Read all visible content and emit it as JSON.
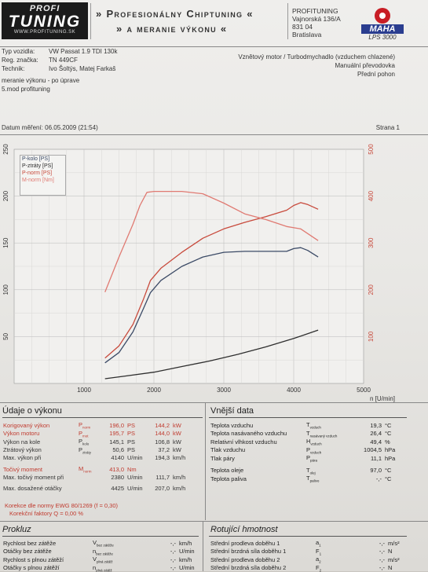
{
  "header": {
    "logo_top": "PROFI",
    "logo_main": "TUNING",
    "logo_url": "WWW.PROFITUNING.SK",
    "title_line1": "» Profesionálny Chiptuning «",
    "title_line2": "» a meranie výkonu «",
    "address": [
      "PROFITUNING",
      "Vajnorská 136/A",
      "831 04",
      "Bratislava"
    ],
    "maha_word": "MAHA",
    "maha_model": "LPS 3000"
  },
  "vehicle": {
    "type_label": "Typ vozidla:",
    "type_value": "VW Passat 1.9 TDI 130k",
    "reg_label": "Reg. značka:",
    "reg_value": "TN 449CF",
    "tech_label": "Technik:",
    "tech_value": "Ivo Šoltýs, Matej Farkaš",
    "engine": "Vznětový motor / Turbodmychadlo (vzduchem chlazené)",
    "gearbox": "Manuální převodovka",
    "drive": "Přední pohon",
    "note1": "meranie výkonu - po úprave",
    "note2": "5.mod profituning"
  },
  "meta": {
    "date": "Datum měření: 06.05.2009 (21:54)",
    "page": "Strana 1"
  },
  "chart_data": {
    "type": "line",
    "x_label": "n [U/min]",
    "x_range": [
      0,
      5000
    ],
    "x_ticks": [
      "1000",
      "2000",
      "3000",
      "4000",
      "5000"
    ],
    "y_left_range": [
      0,
      250
    ],
    "y_left_ticks": [
      "50",
      "100",
      "150",
      "200",
      "250"
    ],
    "y_right_range": [
      0,
      500
    ],
    "y_right_ticks": [
      "100",
      "200",
      "300",
      "400",
      "500"
    ],
    "legend": [
      "P-kolo [PS]",
      "P-ztráty [PS]",
      "P-norm [PS]",
      "M-norm [Nm]"
    ],
    "series": [
      {
        "name": "P-kolo [PS]",
        "color": "#3b4a66",
        "axis": "left",
        "x": [
          1300,
          1500,
          1700,
          1850,
          1950,
          2100,
          2400,
          2700,
          3000,
          3300,
          3600,
          3900,
          4000,
          4100,
          4200,
          4350
        ],
        "y": [
          22,
          33,
          55,
          80,
          97,
          110,
          125,
          135,
          140,
          141,
          141,
          141,
          144,
          145,
          142,
          135
        ]
      },
      {
        "name": "P-ztráty [PS]",
        "color": "#2e2e2e",
        "axis": "left",
        "x": [
          1300,
          1600,
          2000,
          2400,
          2800,
          3200,
          3600,
          4000,
          4350
        ],
        "y": [
          5,
          8,
          12,
          18,
          24,
          31,
          39,
          48,
          57
        ]
      },
      {
        "name": "P-norm [PS]",
        "color": "#c84a3c",
        "axis": "left",
        "x": [
          1300,
          1500,
          1700,
          1850,
          1950,
          2100,
          2400,
          2700,
          3000,
          3300,
          3600,
          3900,
          4000,
          4100,
          4200,
          4350
        ],
        "y": [
          27,
          40,
          63,
          90,
          110,
          123,
          140,
          155,
          165,
          172,
          178,
          185,
          190,
          193,
          191,
          186
        ]
      },
      {
        "name": "M-norm [Nm]",
        "color": "#e07a72",
        "axis": "right",
        "x": [
          1300,
          1500,
          1700,
          1800,
          1900,
          2000,
          2400,
          2700,
          3000,
          3300,
          3600,
          3900,
          4100,
          4350
        ],
        "y": [
          195,
          270,
          340,
          380,
          408,
          410,
          410,
          405,
          385,
          362,
          350,
          335,
          330,
          305
        ]
      }
    ]
  },
  "performance": {
    "title": "Údaje o výkonu",
    "rows": [
      {
        "label": "Korigovaný výkon",
        "sym": "P",
        "sub": "norm",
        "v1": "196,0",
        "u1": "PS",
        "v2": "144,2",
        "u2": "kW",
        "red": true
      },
      {
        "label": "Výkon motoru",
        "sym": "P",
        "sub": "mot",
        "v1": "195,7",
        "u1": "PS",
        "v2": "144,0",
        "u2": "kW",
        "red": true
      },
      {
        "label": "Výkon na kole",
        "sym": "P",
        "sub": "kolo",
        "v1": "145,1",
        "u1": "PS",
        "v2": "106,8",
        "u2": "kW",
        "red": false
      },
      {
        "label": "Ztrátový výkon",
        "sym": "P",
        "sub": "ztráty",
        "v1": "50,6",
        "u1": "PS",
        "v2": "37,2",
        "u2": "kW",
        "red": false
      },
      {
        "label": "Max. výkon při",
        "sym": "",
        "sub": "",
        "v1": "4140",
        "u1": "U/min",
        "v2": "194,3",
        "u2": "km/h",
        "red": false
      }
    ],
    "torque_rows": [
      {
        "label": "Točivý moment",
        "sym": "M",
        "sub": "norm",
        "v1": "413,0",
        "u1": "Nm",
        "v2": "",
        "u2": "",
        "red": true
      },
      {
        "label": "Max. točivý moment při",
        "sym": "",
        "sub": "",
        "v1": "2380",
        "u1": "U/min",
        "v2": "111,7",
        "u2": "km/h",
        "red": false
      }
    ],
    "max_rpm_row": {
      "label": "Max. dosažené otáčky",
      "v1": "4425",
      "u1": "U/min",
      "v2": "207,0",
      "u2": "km/h"
    },
    "correction1": "Korekce dle normy EWG 80/1269 (f = 0,30)",
    "correction2": "Korekční faktory  Q = 0,00 %"
  },
  "external": {
    "title": "Vnější data",
    "rows": [
      {
        "label": "Teplota vzduchu",
        "sym": "T",
        "sub": "vzduch",
        "val": "19,3",
        "unit": "°C"
      },
      {
        "label": "Teplota nasávaného vzduchu",
        "sym": "T",
        "sub": "nasávaný vzduch",
        "val": "26,4",
        "unit": "°C"
      },
      {
        "label": "Relativní vlhkost vzduchu",
        "sym": "H",
        "sub": "vzduch",
        "val": "49,4",
        "unit": "%"
      },
      {
        "label": "Tlak vzduchu",
        "sym": "P",
        "sub": "vzduch",
        "val": "1004,5",
        "unit": "hPa"
      },
      {
        "label": "Tlak páry",
        "sym": "P",
        "sub": "pára",
        "val": "11,1",
        "unit": "hPa"
      },
      {
        "label": "Teplota oleje",
        "sym": "T",
        "sub": "olej",
        "val": "97,0",
        "unit": "°C"
      },
      {
        "label": "Teplota paliva",
        "sym": "T",
        "sub": "palivo",
        "val": "-,-",
        "unit": "°C"
      }
    ]
  },
  "prokluz": {
    "title": "Prokluz",
    "rows": [
      {
        "label": "Rychlost bez zátěže",
        "sym": "V",
        "sub": "bez zátěže",
        "val": "-,-",
        "unit": "km/h"
      },
      {
        "label": "Otáčky bez zátěže",
        "sym": "n",
        "sub": "bez zátěže",
        "val": "-,-",
        "unit": "U/min"
      },
      {
        "label": "Rychlost s plnou zátěží",
        "sym": "V",
        "sub": "plná zátěž",
        "val": "-,-",
        "unit": "km/h"
      },
      {
        "label": "Otáčky s plnou zátěží",
        "sym": "n",
        "sub": "plná zátěž",
        "val": "-,-",
        "unit": "U/min"
      }
    ]
  },
  "rotating": {
    "title": "Rotující hmotnost",
    "rows": [
      {
        "label": "Střední prodleva doběhu 1",
        "sym": "a",
        "sub": "1",
        "val": "-,-",
        "unit": "m/s²"
      },
      {
        "label": "Střední brzdná síla doběhu 1",
        "sym": "F",
        "sub": "1",
        "val": "-,-",
        "unit": "N"
      },
      {
        "label": "Střední prodleva doběhu 2",
        "sym": "a",
        "sub": "2",
        "val": "-,-",
        "unit": "m/s²"
      },
      {
        "label": "Střední brzdná síla doběhu 2",
        "sym": "F",
        "sub": "2",
        "val": "-,-",
        "unit": "N"
      }
    ]
  }
}
